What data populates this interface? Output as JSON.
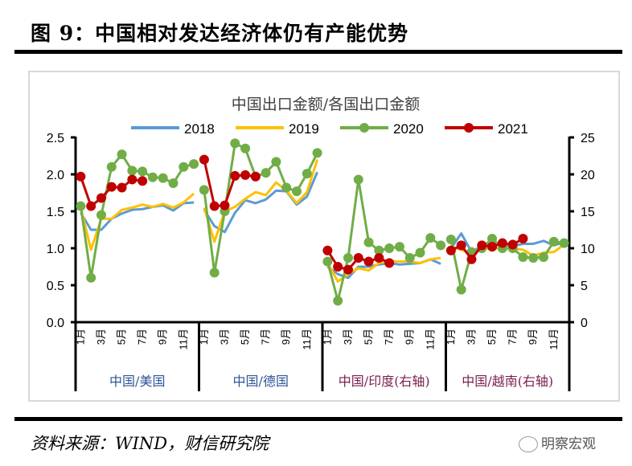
{
  "header": {
    "title": "图 9：中国相对发达经济体仍有产能优势"
  },
  "footer": {
    "source": "资料来源：WIND，财信研究院",
    "watermark": "明察宏观"
  },
  "colors": {
    "2018": "#5b9bd5",
    "2019": "#ffc000",
    "2020": "#70ad47",
    "2021": "#c00000",
    "group_label_left": "#2f5597",
    "group_label_right": "#7a1f4f"
  },
  "chart_data": {
    "type": "line",
    "title": "中国出口金额/各国出口金额",
    "legend": [
      "2018",
      "2019",
      "2020",
      "2021"
    ],
    "legend_position": "top",
    "month_labels": [
      "1月",
      "3月",
      "5月",
      "7月",
      "9月",
      "11月"
    ],
    "left_axis": {
      "ylim": [
        0,
        2.5
      ],
      "ticks": [
        "0.0",
        "0.5",
        "1.0",
        "1.5",
        "2.0",
        "2.5"
      ]
    },
    "right_axis": {
      "ylim": [
        0,
        25
      ],
      "ticks": [
        "0",
        "5",
        "10",
        "15",
        "20",
        "25"
      ]
    },
    "groups": [
      {
        "label": "中国/美国",
        "axis": "left",
        "series": {
          "2018": [
            1.48,
            1.25,
            1.25,
            1.4,
            1.47,
            1.52,
            1.53,
            1.56,
            1.58,
            1.51,
            1.61,
            1.62
          ],
          "2019": [
            1.55,
            0.98,
            1.4,
            1.4,
            1.52,
            1.55,
            1.59,
            1.56,
            1.6,
            1.55,
            1.62,
            1.74
          ],
          "2020": [
            1.57,
            0.6,
            1.45,
            2.1,
            2.27,
            2.05,
            2.04,
            1.96,
            1.95,
            1.88,
            2.1,
            2.14
          ],
          "2021": [
            1.97,
            1.57,
            1.68,
            1.83,
            1.82,
            1.93,
            1.91
          ]
        }
      },
      {
        "label": "中国/德国",
        "axis": "left",
        "series": {
          "2018": [
            1.52,
            1.3,
            1.22,
            1.48,
            1.65,
            1.61,
            1.66,
            1.78,
            1.77,
            1.59,
            1.7,
            2.03
          ],
          "2019": [
            1.55,
            1.09,
            1.5,
            1.56,
            1.67,
            1.76,
            1.72,
            1.89,
            1.78,
            1.61,
            1.76,
            2.2
          ],
          "2020": [
            1.79,
            0.67,
            1.5,
            2.42,
            2.35,
            1.97,
            2.02,
            2.17,
            1.82,
            1.77,
            2.01,
            2.29
          ],
          "2021": [
            2.2,
            1.57,
            1.58,
            1.98,
            1.99,
            1.97
          ]
        }
      },
      {
        "label": "中国/印度(右轴)",
        "axis": "right",
        "series": {
          "2018": [
            7.5,
            6.5,
            6.0,
            7.5,
            7.5,
            7.8,
            8.0,
            7.8,
            7.9,
            8.0,
            8.5,
            7.9
          ],
          "2019": [
            8.0,
            5.5,
            6.5,
            7.3,
            7.0,
            8.0,
            8.3,
            8.2,
            8.2,
            8.0,
            8.5,
            8.7
          ],
          "2020": [
            8.2,
            2.9,
            8.7,
            19.3,
            10.8,
            9.7,
            10.0,
            10.2,
            8.7,
            9.4,
            11.4,
            10.4
          ],
          "2021": [
            9.7,
            7.5,
            7.1,
            8.7,
            8.2,
            8.7,
            8.0
          ]
        }
      },
      {
        "label": "中国/越南(右轴)",
        "axis": "right",
        "series": {
          "2018": [
            10.0,
            12.0,
            9.5,
            10.3,
            10.5,
            10.5,
            10.3,
            10.6,
            10.6,
            11.0,
            10.4,
            10.8
          ],
          "2019": [
            10.2,
            9.8,
            9.2,
            9.9,
            10.0,
            10.0,
            10.0,
            9.8,
            9.0,
            9.4,
            9.5,
            10.5
          ],
          "2020": [
            11.2,
            4.4,
            9.5,
            10.0,
            11.3,
            10.0,
            10.0,
            8.8,
            8.7,
            8.8,
            10.9,
            10.7
          ],
          "2021": [
            9.7,
            10.4,
            8.5,
            10.4,
            10.2,
            10.7,
            10.5,
            11.3
          ]
        }
      }
    ]
  }
}
